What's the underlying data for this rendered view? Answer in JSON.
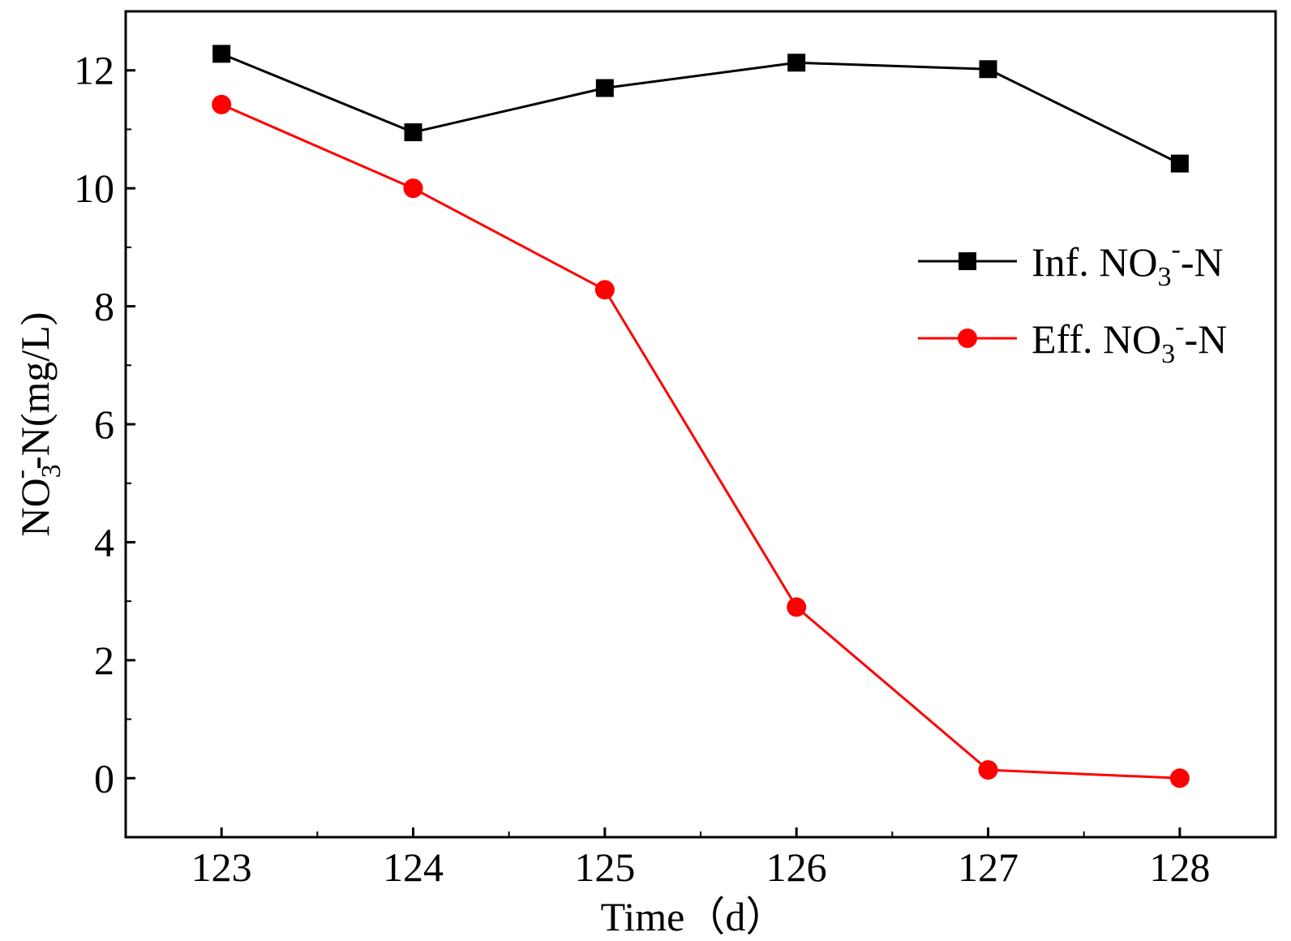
{
  "chart_data": {
    "type": "line",
    "title": "",
    "xlabel": "Time（d）",
    "ylabel": {
      "base": "NO",
      "subscript": "3",
      "superscript": "-",
      "rest": "-N(mg/L)"
    },
    "x": [
      123,
      124,
      125,
      126,
      127,
      128
    ],
    "xlim": [
      122.5,
      128.5
    ],
    "ylim": [
      -1,
      13
    ],
    "xticks": [
      "123",
      "124",
      "125",
      "126",
      "127",
      "128"
    ],
    "yticks": [
      "0",
      "2",
      "4",
      "6",
      "8",
      "10",
      "12"
    ],
    "grid": false,
    "legend_position": "right",
    "series": [
      {
        "name": "Inf. NO3--N",
        "legend": {
          "prefix": "Inf. NO",
          "subscript": "3",
          "superscript": "-",
          "suffix": "-N"
        },
        "values": [
          12.28,
          10.95,
          11.7,
          12.13,
          12.02,
          10.42
        ],
        "color": "#000000",
        "marker": "square"
      },
      {
        "name": "Eff. NO3--N",
        "legend": {
          "prefix": "Eff. NO",
          "subscript": "3",
          "superscript": "-",
          "suffix": "-N"
        },
        "values": [
          11.42,
          10.0,
          8.28,
          2.9,
          0.14,
          0.0
        ],
        "color": "#ff0000",
        "marker": "circle"
      }
    ]
  }
}
